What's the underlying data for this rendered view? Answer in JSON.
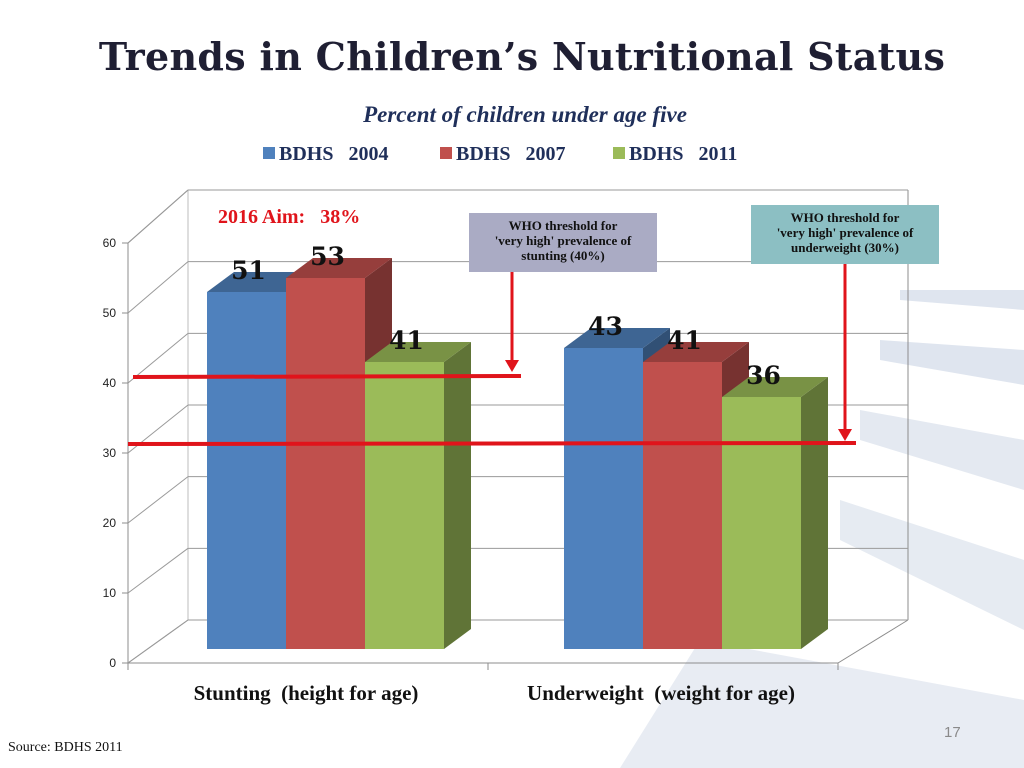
{
  "slide": {
    "title": "Trends in Children’s Nutritional Status",
    "subtitle": "Percent of children under age five",
    "source": "Source: BDHS 2011",
    "page_number": "17"
  },
  "chart_data": {
    "type": "bar",
    "style": "3d-clustered-column",
    "title": "",
    "xlabel": "",
    "ylabel": "",
    "categories": [
      "Stunting  (height for age)",
      "Underweight  (weight for age)"
    ],
    "series": [
      {
        "name": "BDHS   2004",
        "values": [
          51,
          43
        ],
        "color": "#4f81bd"
      },
      {
        "name": "BDHS   2007",
        "values": [
          53,
          41
        ],
        "color": "#c0504d"
      },
      {
        "name": "BDHS   2011",
        "values": [
          41,
          36
        ],
        "color": "#9bbb59"
      }
    ],
    "ylim": [
      0,
      60
    ],
    "yticks": [
      0,
      10,
      20,
      30,
      40,
      50,
      60
    ],
    "grid": true,
    "legend": "top",
    "annotations": [
      {
        "text": "2016 Aim:   38%",
        "color": "#e0141b"
      },
      {
        "text": "WHO threshold for 'very high' prevalence of stunting (40%)",
        "lines": [
          "WHO threshold for",
          "'very high' prevalence of",
          "stunting (40%)"
        ],
        "value": 40,
        "box_color": "#aaabc4"
      },
      {
        "text": "WHO threshold for 'very high' prevalence of underweight (30%)",
        "lines": [
          "WHO threshold for",
          "'very high' prevalence of",
          "underweight (30%)"
        ],
        "value": 30,
        "box_color": "#8cbfc3"
      }
    ]
  }
}
